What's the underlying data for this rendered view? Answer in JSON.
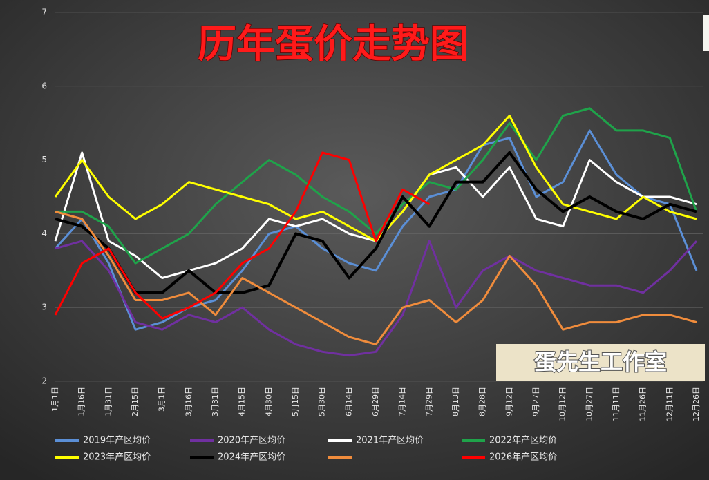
{
  "chart_data": {
    "type": "line",
    "title": "历年蛋价走势图",
    "annotations": [
      "蛋先生工作室"
    ],
    "categories": [
      "1月1日",
      "1月16日",
      "1月31日",
      "2月15日",
      "3月1日",
      "3月16日",
      "3月31日",
      "4月15日",
      "4月30日",
      "5月15日",
      "5月30日",
      "6月14日",
      "6月29日",
      "7月14日",
      "7月29日",
      "8月13日",
      "8月28日",
      "9月12日",
      "9月27日",
      "10月12日",
      "10月27日",
      "11月11日",
      "11月26日",
      "12月11日",
      "12月26日"
    ],
    "ylim": [
      2,
      7
    ],
    "yticks": [
      2,
      3,
      4,
      5,
      6,
      7
    ],
    "grid": true,
    "series": [
      {
        "name": "2019年产区均价",
        "color": "#5b8fd6",
        "values": [
          3.8,
          4.2,
          3.6,
          2.7,
          2.8,
          3.0,
          3.1,
          3.5,
          4.0,
          4.1,
          3.8,
          3.6,
          3.5,
          4.1,
          4.5,
          4.6,
          5.2,
          5.3,
          4.5,
          4.7,
          5.4,
          4.8,
          4.5,
          4.4,
          3.5
        ]
      },
      {
        "name": "2020年产区均价",
        "color": "#7030a0",
        "values": [
          3.8,
          3.9,
          3.5,
          2.8,
          2.7,
          2.9,
          2.8,
          3.0,
          2.7,
          2.5,
          2.4,
          2.35,
          2.4,
          2.9,
          3.9,
          3.0,
          3.5,
          3.7,
          3.5,
          3.4,
          3.3,
          3.3,
          3.2,
          3.5,
          3.9
        ]
      },
      {
        "name": "2021年产区均价",
        "color": "#ffffff",
        "values": [
          3.9,
          5.1,
          3.9,
          3.7,
          3.4,
          3.5,
          3.6,
          3.8,
          4.2,
          4.1,
          4.2,
          4.0,
          3.9,
          4.3,
          4.8,
          4.9,
          4.5,
          4.9,
          4.2,
          4.1,
          5.0,
          4.7,
          4.5,
          4.5,
          4.4
        ]
      },
      {
        "name": "2022年产区均价",
        "color": "#1fa34a",
        "values": [
          4.3,
          4.3,
          4.1,
          3.6,
          3.8,
          4.0,
          4.4,
          4.7,
          5.0,
          4.8,
          4.5,
          4.3,
          4.0,
          4.4,
          4.7,
          4.6,
          5.0,
          5.5,
          5.0,
          5.6,
          5.7,
          5.4,
          5.4,
          5.3,
          4.3
        ]
      },
      {
        "name": "2023年产区均价",
        "color": "#ffff00",
        "values": [
          4.5,
          5.0,
          4.5,
          4.2,
          4.4,
          4.7,
          4.6,
          4.5,
          4.4,
          4.2,
          4.3,
          4.1,
          3.9,
          4.3,
          4.8,
          5.0,
          5.2,
          5.6,
          4.9,
          4.4,
          4.3,
          4.2,
          4.5,
          4.3,
          4.2
        ]
      },
      {
        "name": "2024年产区均价",
        "color": "#000000",
        "values": [
          4.2,
          4.1,
          3.8,
          3.2,
          3.2,
          3.5,
          3.2,
          3.2,
          3.3,
          4.0,
          3.9,
          3.4,
          3.8,
          4.5,
          4.1,
          4.7,
          4.7,
          5.1,
          4.6,
          4.3,
          4.5,
          4.3,
          4.2,
          4.4,
          4.3
        ]
      },
      {
        "name": null,
        "color": "#f08c3c",
        "values": [
          4.3,
          4.2,
          3.7,
          3.1,
          3.1,
          3.2,
          2.9,
          3.4,
          3.2,
          3.0,
          2.8,
          2.6,
          2.5,
          3.0,
          3.1,
          2.8,
          3.1,
          3.7,
          3.3,
          2.7,
          2.8,
          2.8,
          2.9,
          2.9,
          2.8
        ]
      },
      {
        "name": "2026年产区均价",
        "color": "#ff0000",
        "values": [
          2.9,
          3.6,
          3.8,
          3.2,
          2.85,
          3.0,
          3.2,
          3.6,
          3.8,
          4.3,
          5.1,
          5.0,
          3.9,
          4.6,
          4.4,
          null,
          null,
          null,
          null,
          null,
          null,
          null,
          null,
          null,
          null
        ]
      }
    ]
  }
}
